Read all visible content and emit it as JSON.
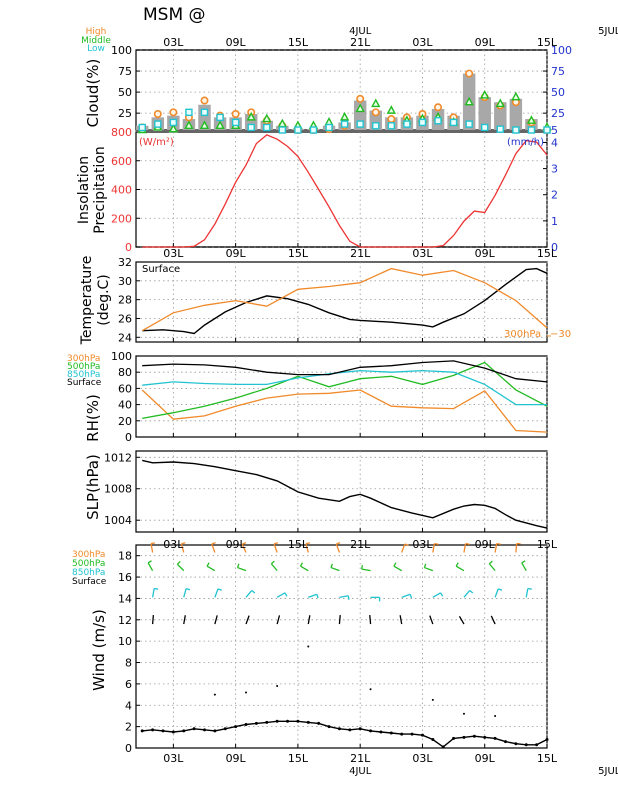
{
  "header": {
    "title": "MSM  @"
  },
  "colors": {
    "high": "#f08a2a",
    "middle": "#22bb22",
    "low": "#22c3d0",
    "surface": "#000000",
    "insolation": "#ee3333",
    "precip": "#2233cc",
    "cloud_bar": "#a8a8a8",
    "grid": "#9a9a9a"
  },
  "time_axis": {
    "top_date_labels": [
      {
        "t": 21,
        "label": "4JUL"
      },
      {
        "t": 45,
        "label": "5JUL"
      }
    ],
    "bottom_date_labels": [
      {
        "t": 21,
        "label": "4JUL"
      },
      {
        "t": 45,
        "label": "5JUL"
      }
    ],
    "tick_labels": [
      {
        "t": 3,
        "label": "03L"
      },
      {
        "t": 9,
        "label": "09L"
      },
      {
        "t": 15,
        "label": "15L"
      },
      {
        "t": 21,
        "label": "21L"
      },
      {
        "t": 27,
        "label": "03L"
      },
      {
        "t": 33,
        "label": "09L"
      },
      {
        "t": 39,
        "label": "15L"
      }
    ]
  },
  "panels": {
    "cloud": {
      "ylabel": "Cloud(%)",
      "legend": [
        "High",
        "Middle",
        "Low"
      ],
      "left_ticks": [
        "100",
        "75",
        "50",
        "25"
      ],
      "right_ticks": [
        "100",
        "75",
        "50",
        "25",
        "5"
      ]
    },
    "insolation": {
      "ylabel_1": "Insolation",
      "ylabel_2": "Precipitation",
      "left_unit": "(W/m²)",
      "right_unit": "(mm/h)",
      "left_ticks": [
        "800",
        "600",
        "400",
        "200",
        "0"
      ],
      "right_ticks": [
        "4",
        "3",
        "2",
        "1",
        "0"
      ]
    },
    "temperature": {
      "ylabel_1": "Temperature",
      "ylabel_2": "(deg.C)",
      "surface_label": "Surface",
      "upper_label": "300hPa",
      "upper_value": "−30",
      "left_ticks": [
        "32",
        "30",
        "28",
        "26",
        "24"
      ]
    },
    "rh": {
      "ylabel": "RH(%)",
      "legend": [
        "300hPa",
        "500hPa",
        "850hPa",
        "Surface"
      ],
      "left_ticks": [
        "100",
        "80",
        "60",
        "40",
        "20",
        "0"
      ]
    },
    "slp": {
      "ylabel": "SLP(hPa)",
      "left_ticks": [
        "1012",
        "1008",
        "1004"
      ]
    },
    "wind": {
      "ylabel": "Wind  (m/s)",
      "legend": [
        "300hPa",
        "500hPa",
        "850hPa",
        "Surface"
      ],
      "left_ticks": [
        "18",
        "16",
        "14",
        "12",
        "10",
        "8",
        "6",
        "4",
        "2",
        "0"
      ]
    }
  },
  "chart_data": [
    {
      "type": "bar",
      "title": "Cloud(%)",
      "x": [
        0,
        1.5,
        3,
        4.5,
        6,
        7.5,
        9,
        10.5,
        12,
        13.5,
        15,
        16.5,
        18,
        19.5,
        21,
        22.5,
        24,
        25.5,
        27,
        28.5,
        30,
        31.5,
        33,
        34.5,
        36,
        37.5,
        39
      ],
      "ylim": [
        0,
        100
      ],
      "series": [
        {
          "name": "Total",
          "values": [
            10,
            20,
            22,
            18,
            35,
            20,
            20,
            24,
            16,
            10,
            6,
            6,
            10,
            14,
            40,
            28,
            20,
            20,
            22,
            30,
            22,
            72,
            44,
            38,
            42,
            18,
            6
          ]
        },
        {
          "name": "High",
          "values": [
            8,
            24,
            26,
            20,
            40,
            22,
            24,
            26,
            16,
            10,
            4,
            4,
            6,
            10,
            42,
            26,
            18,
            20,
            24,
            32,
            20,
            72,
            44,
            34,
            38,
            14,
            2
          ]
        },
        {
          "name": "Middle",
          "values": [
            4,
            8,
            6,
            10,
            10,
            10,
            10,
            20,
            18,
            12,
            10,
            10,
            14,
            20,
            30,
            36,
            28,
            16,
            18,
            20,
            14,
            38,
            46,
            36,
            44,
            16,
            8
          ]
        },
        {
          "name": "Low",
          "values": [
            8,
            12,
            14,
            26,
            26,
            20,
            14,
            8,
            8,
            4,
            2,
            4,
            8,
            12,
            12,
            10,
            10,
            12,
            14,
            16,
            14,
            12,
            8,
            6,
            2,
            2,
            2
          ]
        }
      ]
    },
    {
      "type": "line",
      "title": "Insolation / Precipitation",
      "ylim": [
        0,
        800
      ],
      "series": [
        {
          "name": "Insolation (W/m²)",
          "x": [
            0,
            4,
            5,
            6,
            7,
            8,
            9,
            10,
            11,
            12,
            13,
            14,
            15,
            16,
            17,
            18,
            19,
            20,
            21,
            28,
            29,
            30,
            31,
            32,
            33,
            34,
            35,
            36,
            37,
            38,
            39
          ],
          "values": [
            0,
            0,
            5,
            50,
            160,
            300,
            450,
            570,
            720,
            780,
            750,
            700,
            630,
            520,
            400,
            280,
            150,
            40,
            0,
            0,
            10,
            80,
            180,
            250,
            240,
            360,
            500,
            650,
            740,
            730,
            640
          ]
        },
        {
          "name": "Precipitation (mm/h)",
          "x": [
            0,
            39
          ],
          "values": [
            0,
            0
          ]
        }
      ]
    },
    {
      "type": "line",
      "title": "Temperature (deg.C)",
      "ylim": [
        23.5,
        32
      ],
      "series": [
        {
          "name": "Surface",
          "x": [
            0,
            2,
            4,
            5,
            6,
            8,
            10,
            12,
            14,
            16,
            18,
            20,
            21,
            24,
            27,
            28,
            29,
            31,
            33,
            35,
            37,
            38,
            39
          ],
          "values": [
            24.7,
            24.8,
            24.6,
            24.4,
            25.3,
            26.7,
            27.7,
            28.4,
            28.1,
            27.5,
            26.6,
            25.9,
            25.8,
            25.6,
            25.3,
            25.1,
            25.6,
            26.5,
            27.9,
            29.6,
            31.2,
            31.3,
            30.8
          ]
        },
        {
          "name": "300hPa",
          "x": [
            0,
            3,
            6,
            9,
            12,
            15,
            18,
            21,
            24,
            27,
            30,
            33,
            36,
            39
          ],
          "values": [
            24.7,
            26.6,
            27.4,
            27.9,
            27.3,
            29.1,
            29.4,
            29.8,
            31.3,
            30.6,
            31.1,
            29.8,
            27.9,
            25.0
          ]
        }
      ]
    },
    {
      "type": "line",
      "title": "RH(%)",
      "ylim": [
        0,
        100
      ],
      "series": [
        {
          "name": "300hPa",
          "x": [
            0,
            3,
            6,
            9,
            12,
            15,
            18,
            21,
            24,
            27,
            30,
            33,
            36,
            39
          ],
          "values": [
            58,
            22,
            26,
            38,
            48,
            53,
            54,
            58,
            38,
            36,
            35,
            57,
            8,
            6
          ]
        },
        {
          "name": "500hPa",
          "x": [
            0,
            3,
            6,
            9,
            12,
            15,
            18,
            21,
            24,
            27,
            30,
            33,
            36,
            39
          ],
          "values": [
            23,
            30,
            38,
            48,
            60,
            75,
            62,
            72,
            75,
            65,
            76,
            92,
            58,
            38
          ]
        },
        {
          "name": "850hPa",
          "x": [
            0,
            3,
            6,
            9,
            12,
            15,
            18,
            21,
            24,
            27,
            30,
            33,
            36,
            39
          ],
          "values": [
            64,
            68,
            66,
            65,
            65,
            73,
            78,
            82,
            80,
            82,
            80,
            65,
            40,
            40
          ]
        },
        {
          "name": "Surface",
          "x": [
            0,
            3,
            6,
            9,
            12,
            15,
            18,
            21,
            24,
            27,
            30,
            33,
            36,
            39
          ],
          "values": [
            88,
            90,
            89,
            86,
            80,
            77,
            77,
            86,
            88,
            92,
            94,
            85,
            72,
            68
          ]
        }
      ]
    },
    {
      "type": "line",
      "title": "SLP(hPa)",
      "ylim": [
        1002.5,
        1012.8
      ],
      "series": [
        {
          "name": "SLP",
          "x": [
            0,
            1,
            3,
            5,
            7,
            9,
            11,
            13,
            15,
            17,
            19,
            20,
            21,
            22,
            24,
            26,
            28,
            30,
            31,
            32,
            33,
            34,
            35,
            36,
            38,
            39
          ],
          "values": [
            1011.6,
            1011.3,
            1011.4,
            1011.2,
            1010.8,
            1010.3,
            1009.8,
            1009.0,
            1007.6,
            1006.8,
            1006.4,
            1007.0,
            1007.3,
            1006.8,
            1005.6,
            1004.9,
            1004.3,
            1005.4,
            1005.8,
            1006.0,
            1005.9,
            1005.5,
            1004.7,
            1004.0,
            1003.3,
            1003.0
          ]
        }
      ]
    },
    {
      "type": "line",
      "title": "Wind (m/s)",
      "ylim": [
        0,
        19
      ],
      "series": [
        {
          "name": "Surface speed",
          "x": [
            0,
            1,
            2,
            3,
            4,
            5,
            6,
            7,
            8,
            9,
            10,
            11,
            12,
            13,
            14,
            15,
            16,
            17,
            18,
            19,
            20,
            21,
            22,
            23,
            24,
            25,
            26,
            27,
            28,
            29,
            30,
            31,
            32,
            33,
            34,
            35,
            36,
            37,
            38,
            39
          ],
          "values": [
            1.6,
            1.7,
            1.6,
            1.5,
            1.6,
            1.8,
            1.7,
            1.6,
            1.8,
            2.0,
            2.2,
            2.3,
            2.4,
            2.5,
            2.5,
            2.5,
            2.4,
            2.3,
            2.0,
            1.8,
            1.7,
            1.8,
            1.6,
            1.5,
            1.4,
            1.3,
            1.3,
            1.2,
            0.8,
            0.1,
            0.9,
            1.0,
            1.1,
            1.0,
            0.9,
            0.6,
            0.4,
            0.3,
            0.3,
            0.8
          ]
        }
      ]
    }
  ]
}
